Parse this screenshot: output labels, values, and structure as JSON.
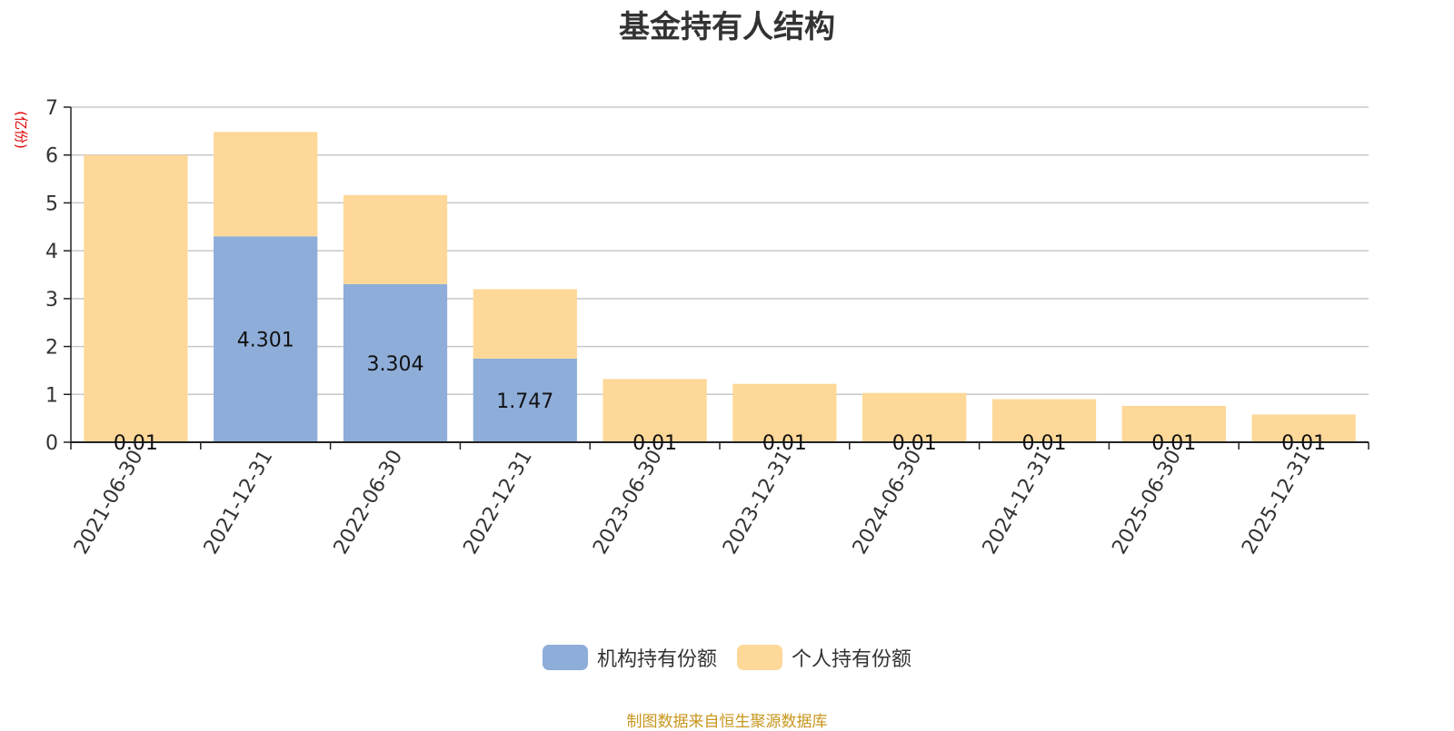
{
  "title": "基金持有人结构",
  "footer": "制图数据来自恒生聚源数据库",
  "colors": {
    "institution": "#8eadd9",
    "individual": "#fdd898",
    "axis": "#222222",
    "grid": "#c8c8c8",
    "ylabel": "#e00000",
    "footer": "#c8961e"
  },
  "chart_data": {
    "type": "bar",
    "stacked": true,
    "title": "基金持有人结构",
    "ylabel": "(亿份)",
    "ylim": [
      0,
      7
    ],
    "yticks": [
      0,
      1,
      2,
      3,
      4,
      5,
      6,
      7
    ],
    "grid": true,
    "legend_position": "bottom-center",
    "categories": [
      "2021-06-30",
      "2021-12-31",
      "2022-06-30",
      "2022-12-31",
      "2023-06-30",
      "2023-12-31",
      "2024-06-30",
      "2024-12-31",
      "2025-06-30",
      "2025-12-31"
    ],
    "series": [
      {
        "name": "机构持有份额",
        "values": [
          0.01,
          4.301,
          3.304,
          1.747,
          0.01,
          0.01,
          0.01,
          0.01,
          0.01,
          0.01
        ],
        "labels": [
          "0.01",
          "4.301",
          "3.304",
          "1.747",
          "0.01",
          "0.01",
          "0.01",
          "0.01",
          "0.01",
          "0.01"
        ]
      },
      {
        "name": "个人持有份额",
        "values": [
          5.99,
          2.18,
          1.86,
          1.45,
          1.31,
          1.21,
          1.02,
          0.89,
          0.75,
          0.57
        ]
      }
    ]
  }
}
